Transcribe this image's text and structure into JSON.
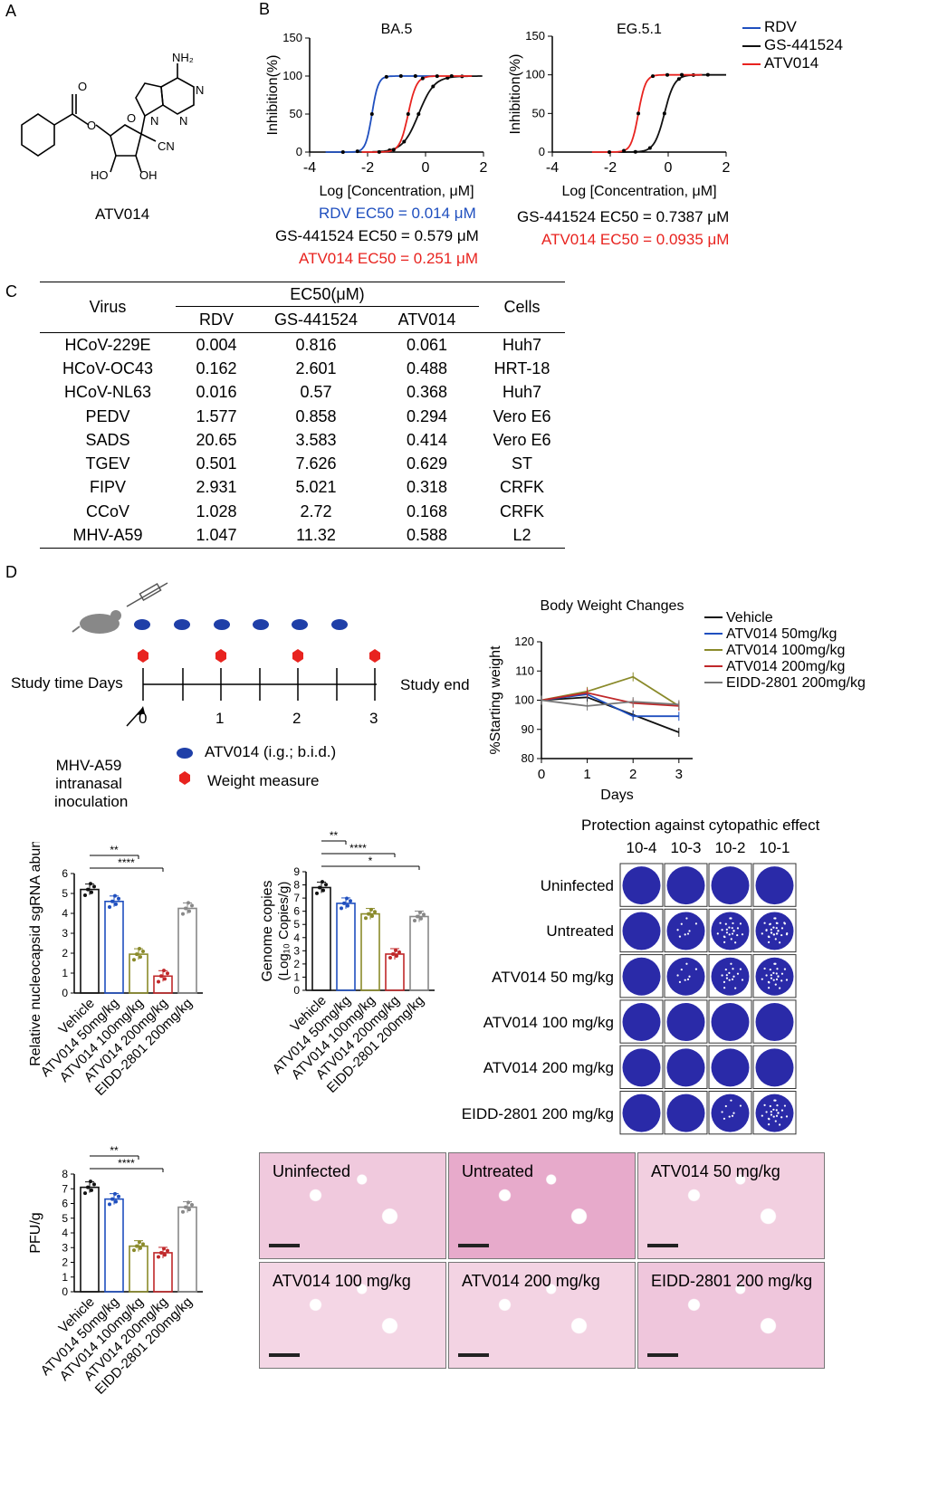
{
  "panels": {
    "a": "A",
    "b": "B",
    "c": "C",
    "d": "D"
  },
  "molecule": {
    "name": "ATV014",
    "nh2": "NH₂",
    "cn": "CN",
    "oh": "OH",
    "ho": "HO",
    "n": "N"
  },
  "chart_data": [
    {
      "type": "line",
      "title": "BA.5",
      "xlabel": "Log [Concentration, μM]",
      "ylabel": "Inhibition(%)",
      "xlim": [
        -4,
        2
      ],
      "ylim": [
        0,
        150
      ],
      "xticks": [
        "-4",
        "-2",
        "0",
        "2"
      ],
      "yticks": [
        "0",
        "50",
        "100",
        "150"
      ],
      "series": [
        {
          "name": "RDV",
          "color": "#1f4fbf",
          "ec50_log": -1.85,
          "hill": 4
        },
        {
          "name": "GS-441524",
          "color": "#111111",
          "ec50_log": -0.24,
          "hill": 1.6
        },
        {
          "name": "ATV014",
          "color": "#e8231f",
          "ec50_log": -0.6,
          "hill": 3
        }
      ]
    },
    {
      "type": "line",
      "title": "EG.5.1",
      "xlabel": "Log [Concentration, μM]",
      "ylabel": "Inhibition(%)",
      "xlim": [
        -4,
        2
      ],
      "ylim": [
        0,
        150
      ],
      "xticks": [
        "-4",
        "-2",
        "0",
        "2"
      ],
      "yticks": [
        "0",
        "50",
        "100",
        "150"
      ],
      "series": [
        {
          "name": "GS-441524",
          "color": "#111111",
          "ec50_log": -0.13,
          "hill": 2.5
        },
        {
          "name": "ATV014",
          "color": "#e8231f",
          "ec50_log": -1.03,
          "hill": 3.5
        }
      ]
    },
    {
      "type": "line",
      "title": "Body Weight Changes",
      "xlabel": "Days",
      "ylabel": "%Starting weight",
      "ylim": [
        80,
        120
      ],
      "x": [
        0,
        1,
        2,
        3
      ],
      "xticks": [
        "0",
        "1",
        "2",
        "3"
      ],
      "yticks": [
        "80",
        "90",
        "100",
        "110",
        "120"
      ],
      "series": [
        {
          "name": "Vehicle",
          "color": "#111111",
          "values": [
            100,
            101,
            95,
            89
          ]
        },
        {
          "name": "ATV014 50mg/kg",
          "color": "#1f4fbf",
          "values": [
            100,
            102,
            94.5,
            94.5
          ]
        },
        {
          "name": "ATV014 100mg/kg",
          "color": "#8a8a2a",
          "values": [
            100,
            103,
            108,
            98
          ]
        },
        {
          "name": "ATV014 200mg/kg",
          "color": "#c0282a",
          "values": [
            100,
            102.5,
            99,
            98
          ]
        },
        {
          "name": "EIDD-2801 200mg/kg",
          "color": "#777777",
          "values": [
            100,
            98,
            99.5,
            98.5
          ]
        }
      ]
    },
    {
      "type": "bar",
      "ylabel": "Relative nucleocapsid sgRNA abundance",
      "ylim": [
        0,
        6
      ],
      "yticks": [
        "0",
        "1",
        "2",
        "3",
        "4",
        "5",
        "6"
      ],
      "categories": [
        "Vehicle",
        "ATV014 50mg/kg",
        "ATV014 100mg/kg",
        "ATV014 200mg/kg",
        "EIDD-2801 200mg/kg"
      ],
      "values": [
        5.2,
        4.6,
        1.95,
        0.85,
        4.25
      ],
      "sig": [
        "**",
        "****"
      ]
    },
    {
      "type": "bar",
      "ylabel": "Genome copies",
      "ylabel2": "(Log₁₀ Copies/g)",
      "ylim": [
        0,
        9
      ],
      "yticks": [
        "0",
        "1",
        "2",
        "3",
        "4",
        "5",
        "6",
        "7",
        "8",
        "9"
      ],
      "categories": [
        "Vehicle",
        "ATV014 50mg/kg",
        "ATV014 100mg/kg",
        "ATV014 200mg/kg",
        "EIDD-2801 200mg/kg"
      ],
      "values": [
        7.8,
        6.6,
        5.8,
        2.75,
        5.6
      ],
      "sig": [
        "**",
        "****",
        "*"
      ]
    },
    {
      "type": "bar",
      "ylabel": "PFU/g",
      "ylim": [
        0,
        8
      ],
      "yticks": [
        "0",
        "1",
        "2",
        "3",
        "4",
        "5",
        "6",
        "7",
        "8"
      ],
      "categories": [
        "Vehicle",
        "ATV014 50mg/kg",
        "ATV014 100mg/kg",
        "ATV014 200mg/kg",
        "EIDD-2801 200mg/kg"
      ],
      "values": [
        7.1,
        6.3,
        3.1,
        2.65,
        5.75
      ],
      "sig": [
        "**",
        "****"
      ]
    }
  ],
  "ec50_text": {
    "ba5": [
      "RDV  EC50 = 0.014 μM",
      "GS-441524  EC50 = 0.579 μM",
      "ATV014  EC50 = 0.251 μM"
    ],
    "eg51": [
      "GS-441524  EC50 = 0.7387 μM",
      "ATV014  EC50 = 0.0935 μM"
    ]
  },
  "legend_b": [
    "RDV",
    "GS-441524",
    "ATV014"
  ],
  "table": {
    "virus_header": "Virus",
    "ec50_header": "EC50(μM)",
    "cells_header": "Cells",
    "sub_headers": [
      "RDV",
      "GS-441524",
      "ATV014"
    ],
    "rows": [
      [
        "HCoV-229E",
        "0.004",
        "0.816",
        "0.061",
        "Huh7"
      ],
      [
        "HCoV-OC43",
        "0.162",
        "2.601",
        "0.488",
        "HRT-18"
      ],
      [
        "HCoV-NL63",
        "0.016",
        "0.57",
        "0.368",
        "Huh7"
      ],
      [
        "PEDV",
        "1.577",
        "0.858",
        "0.294",
        "Vero E6"
      ],
      [
        "SADS",
        "20.65",
        "3.583",
        "0.414",
        "Vero E6"
      ],
      [
        "TGEV",
        "0.501",
        "7.626",
        "0.629",
        "ST"
      ],
      [
        "FIPV",
        "2.931",
        "5.021",
        "0.318",
        "CRFK"
      ],
      [
        "CCoV",
        "1.028",
        "2.72",
        "0.168",
        "CRFK"
      ],
      [
        "MHV-A59",
        "1.047",
        "11.32",
        "0.588",
        "L2"
      ]
    ]
  },
  "timeline": {
    "study_time": "Study time Days",
    "study_end": "Study end",
    "days": [
      "0",
      "1",
      "2",
      "3"
    ],
    "inoculation": [
      "MHV-A59",
      "intranasal",
      "inoculation"
    ],
    "legend_drug": "ATV014 (i.g.; b.i.d.)",
    "legend_weight": "Weight measure"
  },
  "plaque": {
    "title": "Protection against cytopathic effect",
    "dilutions": [
      "10-4",
      "10-3",
      "10-2",
      "10-1"
    ],
    "rows": [
      "Uninfected",
      "Untreated",
      "ATV014 50 mg/kg",
      "ATV014 100 mg/kg",
      "ATV014 200 mg/kg",
      "EIDD-2801 200 mg/kg"
    ],
    "spots": [
      [
        0,
        0,
        0,
        0
      ],
      [
        0,
        1,
        3,
        4
      ],
      [
        0,
        1,
        2,
        3
      ],
      [
        0,
        0,
        0,
        0
      ],
      [
        0,
        0,
        0,
        0
      ],
      [
        0,
        0,
        1,
        3
      ]
    ]
  },
  "histology": [
    "Uninfected",
    "Untreated",
    "ATV014 50 mg/kg",
    "ATV014 100 mg/kg",
    "ATV014 200 mg/kg",
    "EIDD-2801 200 mg/kg"
  ],
  "colors": {
    "blue": "#1f4fbf",
    "red": "#e8231f",
    "black": "#111111",
    "olive": "#8a8a2a",
    "darkred": "#c0282a",
    "grey": "#777777",
    "plate": "#2a2aa8",
    "tissue": "#f2cfe0"
  }
}
